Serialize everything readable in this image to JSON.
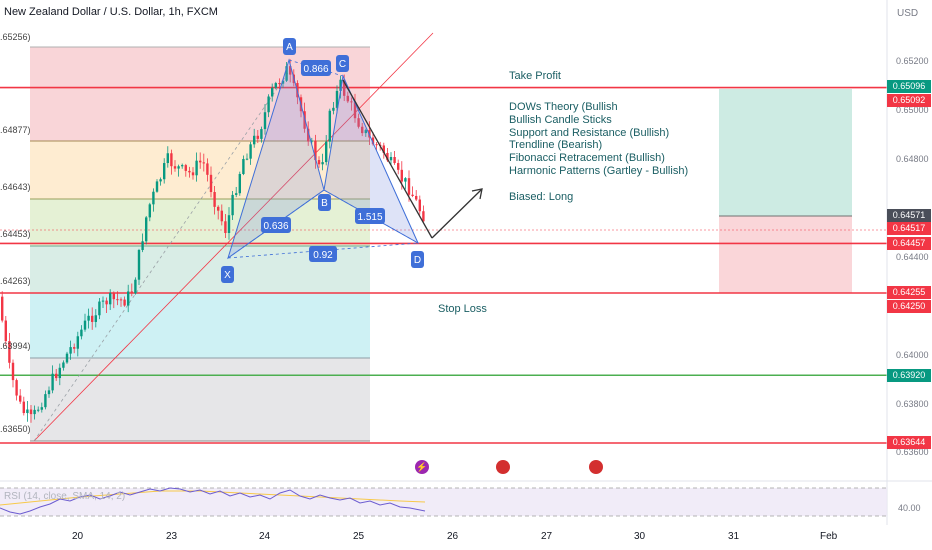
{
  "header": {
    "title": "New Zealand Dollar / U.S. Dollar, 1h, FXCM",
    "currency": "USD"
  },
  "annotations": {
    "take_profit": "Take Profit",
    "stop_loss": "Stop Loss",
    "biased": "Biased: Long",
    "strategy_lines": [
      "DOWs Theory (Bullish",
      "Bullish Candle Sticks",
      "Support and Resistance (Bullish)",
      "Trendline (Bearish)",
      "Fibonacci Retracement (Bullish)",
      "Harmonic Patterns (Gartley - Bullish)"
    ]
  },
  "harmonic": {
    "points": [
      {
        "label": "X",
        "price": 0.6441
      },
      {
        "label": "A",
        "price": 0.6521
      },
      {
        "label": "B",
        "price": 0.6466
      },
      {
        "label": "C",
        "price": 0.6513
      },
      {
        "label": "D",
        "price": 0.6445
      }
    ],
    "ratios": [
      {
        "label": "0.866"
      },
      {
        "label": "0.636"
      },
      {
        "label": "1.515"
      },
      {
        "label": "0.92"
      }
    ]
  },
  "fib_levels": [
    {
      "label": ".65256)",
      "price": 0.65256
    },
    {
      "label": ".64877)",
      "price": 0.64877
    },
    {
      "label": ".64643)",
      "price": 0.64643
    },
    {
      "label": ".64453)",
      "price": 0.64453
    },
    {
      "label": ".64263)",
      "price": 0.64263
    },
    {
      "label": ".63994)",
      "price": 0.63994
    },
    {
      "label": ".63650)",
      "price": 0.6365
    }
  ],
  "price_axis": {
    "ticks": [
      "0.65200",
      "0.65000",
      "0.64800",
      "0.64400",
      "0.64000",
      "0.63800",
      "0.63600"
    ],
    "tags": [
      {
        "text": "0.65096",
        "color": "#089981",
        "price": 0.65096
      },
      {
        "text": "0.65092",
        "color": "#f23645",
        "price": 0.65092
      },
      {
        "text": "0.64571",
        "color": "#4a4e59",
        "price": 0.64571
      },
      {
        "text": "0.64517",
        "color": "#f23645",
        "price": 0.64517
      },
      {
        "text": "0.64457",
        "color": "#f23645",
        "price": 0.64457
      },
      {
        "text": "0.64255",
        "color": "#f23645",
        "price": 0.64255
      },
      {
        "text": "0.64250",
        "color": "#f23645",
        "price": 0.6425
      },
      {
        "text": "0.63920",
        "color": "#089981",
        "price": 0.6392
      },
      {
        "text": "0.63644",
        "color": "#f23645",
        "price": 0.63644
      }
    ]
  },
  "horizontal_lines": [
    {
      "price": 0.65092,
      "color": "#f23645"
    },
    {
      "price": 0.64457,
      "color": "#f23645"
    },
    {
      "price": 0.64255,
      "color": "#f23645"
    },
    {
      "price": 0.6392,
      "color": "#4caf50"
    },
    {
      "price": 0.63644,
      "color": "#f23645"
    }
  ],
  "time_axis": {
    "labels": [
      "20",
      "23",
      "24",
      "25",
      "26",
      "27",
      "30",
      "31",
      "Feb"
    ]
  },
  "events": [
    {
      "icon": "lightning-icon",
      "glyph": "⚡",
      "color": "#9c27b0"
    },
    {
      "icon": "us-flag-icon",
      "glyph": "",
      "color": "#d32f2f"
    },
    {
      "icon": "us-flag-icon",
      "glyph": "",
      "color": "#d32f2f"
    }
  ],
  "rsi": {
    "label": "RSI (14, close, SMA, 14, 2)",
    "value": "40.00"
  },
  "colors": {
    "bull": "#089981",
    "bear": "#f23645",
    "harmonic_line": "#3f6fd8",
    "rsi_line": "#6b5bd0",
    "rsi_ma": "#f7c94a"
  }
}
